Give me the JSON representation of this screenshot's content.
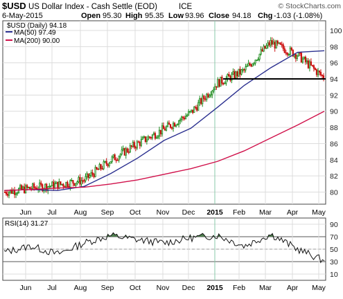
{
  "header": {
    "symbol": "$USD",
    "name": "US Dollar Index - Cash Settle (EOD)",
    "exchange": "ICE",
    "watermark": "© StockCharts.com",
    "date": "6-May-2015",
    "open_label": "Open",
    "open": "95.30",
    "high_label": "High",
    "high": "95.35",
    "low_label": "Low",
    "low": "93.96",
    "close_label": "Close",
    "close": "94.18",
    "chg_label": "Chg",
    "chg": "-1.03 (-1.08%)"
  },
  "legend": {
    "price": "$USD (Daily) 94.18",
    "ma50": "MA(50) 97.49",
    "ma200": "MA(200) 90.00"
  },
  "rsi_legend": "RSI(14) 31.27",
  "colors": {
    "up_candle": "#1a8a1a",
    "down_candle": "#cc1111",
    "ma50": "#2a2f8f",
    "ma200": "#d0104a",
    "grid": "#dcdcdc",
    "rsi_fill": "#4f7f4f",
    "support_line": "#000000",
    "year_divider": "#88c8a8"
  },
  "chart_data": [
    {
      "type": "line",
      "panel": "price",
      "title": "$USD (Daily) 94.18",
      "x_labels": [
        "Jun",
        "Jul",
        "Aug",
        "Sep",
        "Oct",
        "Nov",
        "Dec",
        "2015",
        "Feb",
        "Mar",
        "Apr",
        "May"
      ],
      "y_ticks": [
        80,
        82,
        84,
        86,
        88,
        90,
        92,
        94,
        96,
        98,
        100
      ],
      "ylim": [
        78.5,
        101.2
      ],
      "y_axis_side": "right",
      "grid": true,
      "close_series_monthly": {
        "x": [
          "May-2014",
          "Jun",
          "Jul",
          "Aug",
          "Sep",
          "Oct",
          "Nov",
          "Dec",
          "Jan-2015",
          "Feb",
          "Mar",
          "Apr",
          "6-May-2015"
        ],
        "values": [
          80.0,
          80.5,
          80.9,
          81.5,
          84.0,
          86.0,
          87.8,
          89.8,
          93.5,
          95.0,
          98.5,
          97.0,
          94.18
        ]
      },
      "series": [
        {
          "name": "MA(50) 97.49",
          "x": [
            "May-2014",
            "Jun",
            "Jul",
            "Aug",
            "Sep",
            "Oct",
            "Nov",
            "Dec",
            "Jan-2015",
            "Feb",
            "Mar",
            "Apr",
            "6-May-2015"
          ],
          "values": [
            80.2,
            80.3,
            80.2,
            80.7,
            82.3,
            84.2,
            86.4,
            87.9,
            90.5,
            93.2,
            95.4,
            97.3,
            97.49
          ]
        },
        {
          "name": "MA(200) 90.00",
          "x": [
            "May-2014",
            "Jun",
            "Jul",
            "Aug",
            "Sep",
            "Oct",
            "Nov",
            "Dec",
            "Jan-2015",
            "Feb",
            "Mar",
            "Apr",
            "6-May-2015"
          ],
          "values": [
            80.2,
            80.3,
            80.5,
            80.6,
            81.0,
            81.5,
            82.2,
            82.9,
            83.8,
            85.1,
            86.7,
            88.3,
            90.0
          ]
        }
      ],
      "horizontal_line": 94.0
    },
    {
      "type": "area",
      "panel": "indicator",
      "title": "RSI(14) 31.27",
      "x_labels": [
        "Jun",
        "Jul",
        "Aug",
        "Sep",
        "Oct",
        "Nov",
        "Dec",
        "2015",
        "Feb",
        "Mar",
        "Apr",
        "May"
      ],
      "y_ticks": [
        10,
        30,
        50,
        70,
        90
      ],
      "ylim": [
        0,
        100
      ],
      "y_axis_side": "right",
      "reference_lines": [
        30,
        70
      ],
      "x": [
        "May-2014",
        "Jun",
        "Jul",
        "Aug",
        "Sep",
        "Oct",
        "Nov",
        "Dec",
        "Jan-2015",
        "Feb",
        "Mar",
        "Apr",
        "6-May-2015"
      ],
      "values": [
        45,
        55,
        42,
        60,
        72,
        65,
        60,
        68,
        72,
        55,
        74,
        50,
        31.27
      ]
    }
  ]
}
